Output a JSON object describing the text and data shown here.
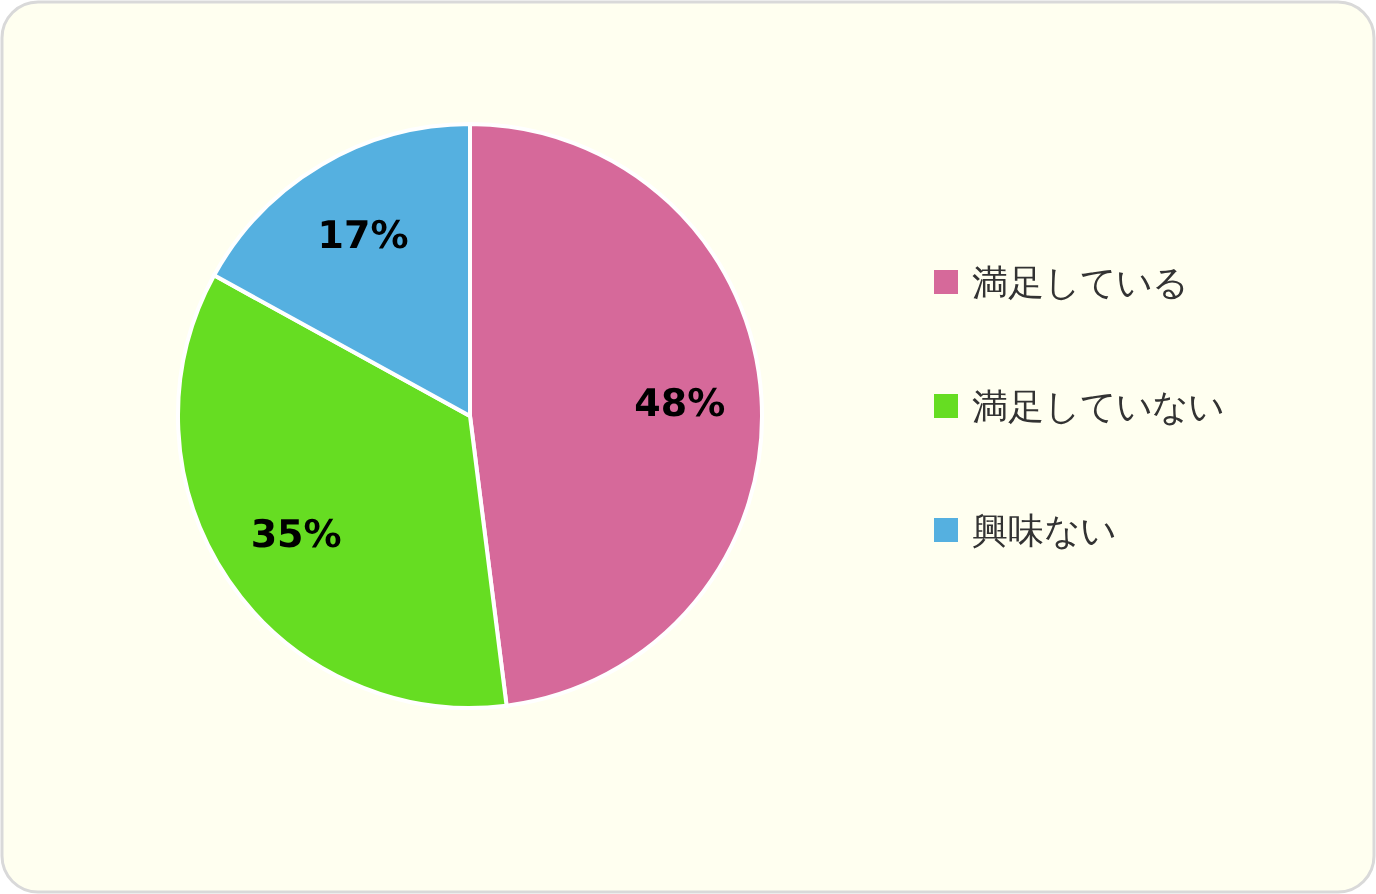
{
  "chart_data": {
    "type": "pie",
    "categories": [
      "満足している",
      "満足していない",
      "興味ない"
    ],
    "values": [
      48,
      35,
      17
    ],
    "colors": [
      "#d6699a",
      "#66dd22",
      "#55b0e0"
    ],
    "value_labels": [
      "48%",
      "35%",
      "17%"
    ],
    "legend": "right"
  }
}
